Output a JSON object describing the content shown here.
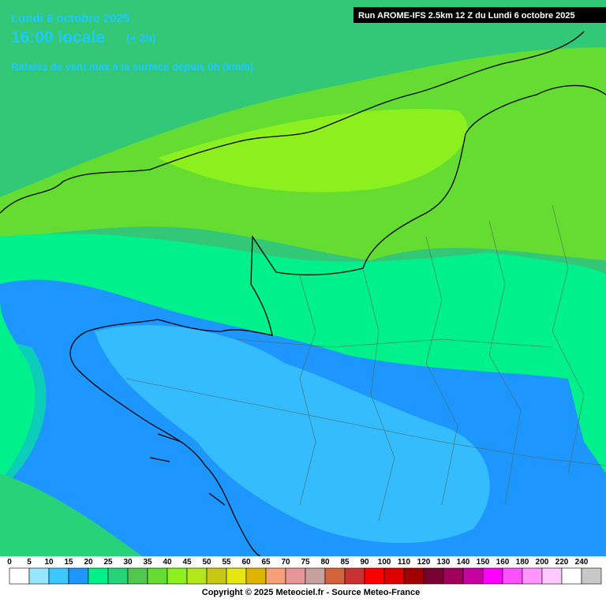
{
  "header": {
    "date": "Lundi 6 octobre 2025",
    "time": "16:00 locale",
    "offset": "(+ 2h)",
    "subtitle": "Rafales de vent max à la surface depuis 0h (km/h)",
    "run": "Run AROME-IFS 2.5km 12 Z du Lundi 6 octobre 2025"
  },
  "legend": {
    "labels": [
      0,
      5,
      10,
      15,
      20,
      25,
      30,
      35,
      40,
      45,
      50,
      55,
      60,
      65,
      70,
      75,
      80,
      85,
      90,
      100,
      110,
      120,
      130,
      140,
      150,
      160,
      180,
      200,
      220,
      240
    ],
    "colors": [
      "#ffffff",
      "#96e6ff",
      "#3cc8ff",
      "#1e96ff",
      "#00f08c",
      "#28d278",
      "#50c850",
      "#64dc32",
      "#8cf01e",
      "#b4e61e",
      "#c8c814",
      "#e6e614",
      "#dcb400",
      "#f5a078",
      "#e69696",
      "#c8a0a0",
      "#d2643c",
      "#c83232",
      "#ff0000",
      "#dc0000",
      "#a00000",
      "#780032",
      "#a0005a",
      "#c800a0",
      "#ff00ff",
      "#ff50ff",
      "#ff96ff",
      "#ffc8ff",
      "#ffffff",
      "#c8c8c8"
    ]
  },
  "footer": "Copyright © 2025 Meteociel.fr - Source Meteo-France"
}
